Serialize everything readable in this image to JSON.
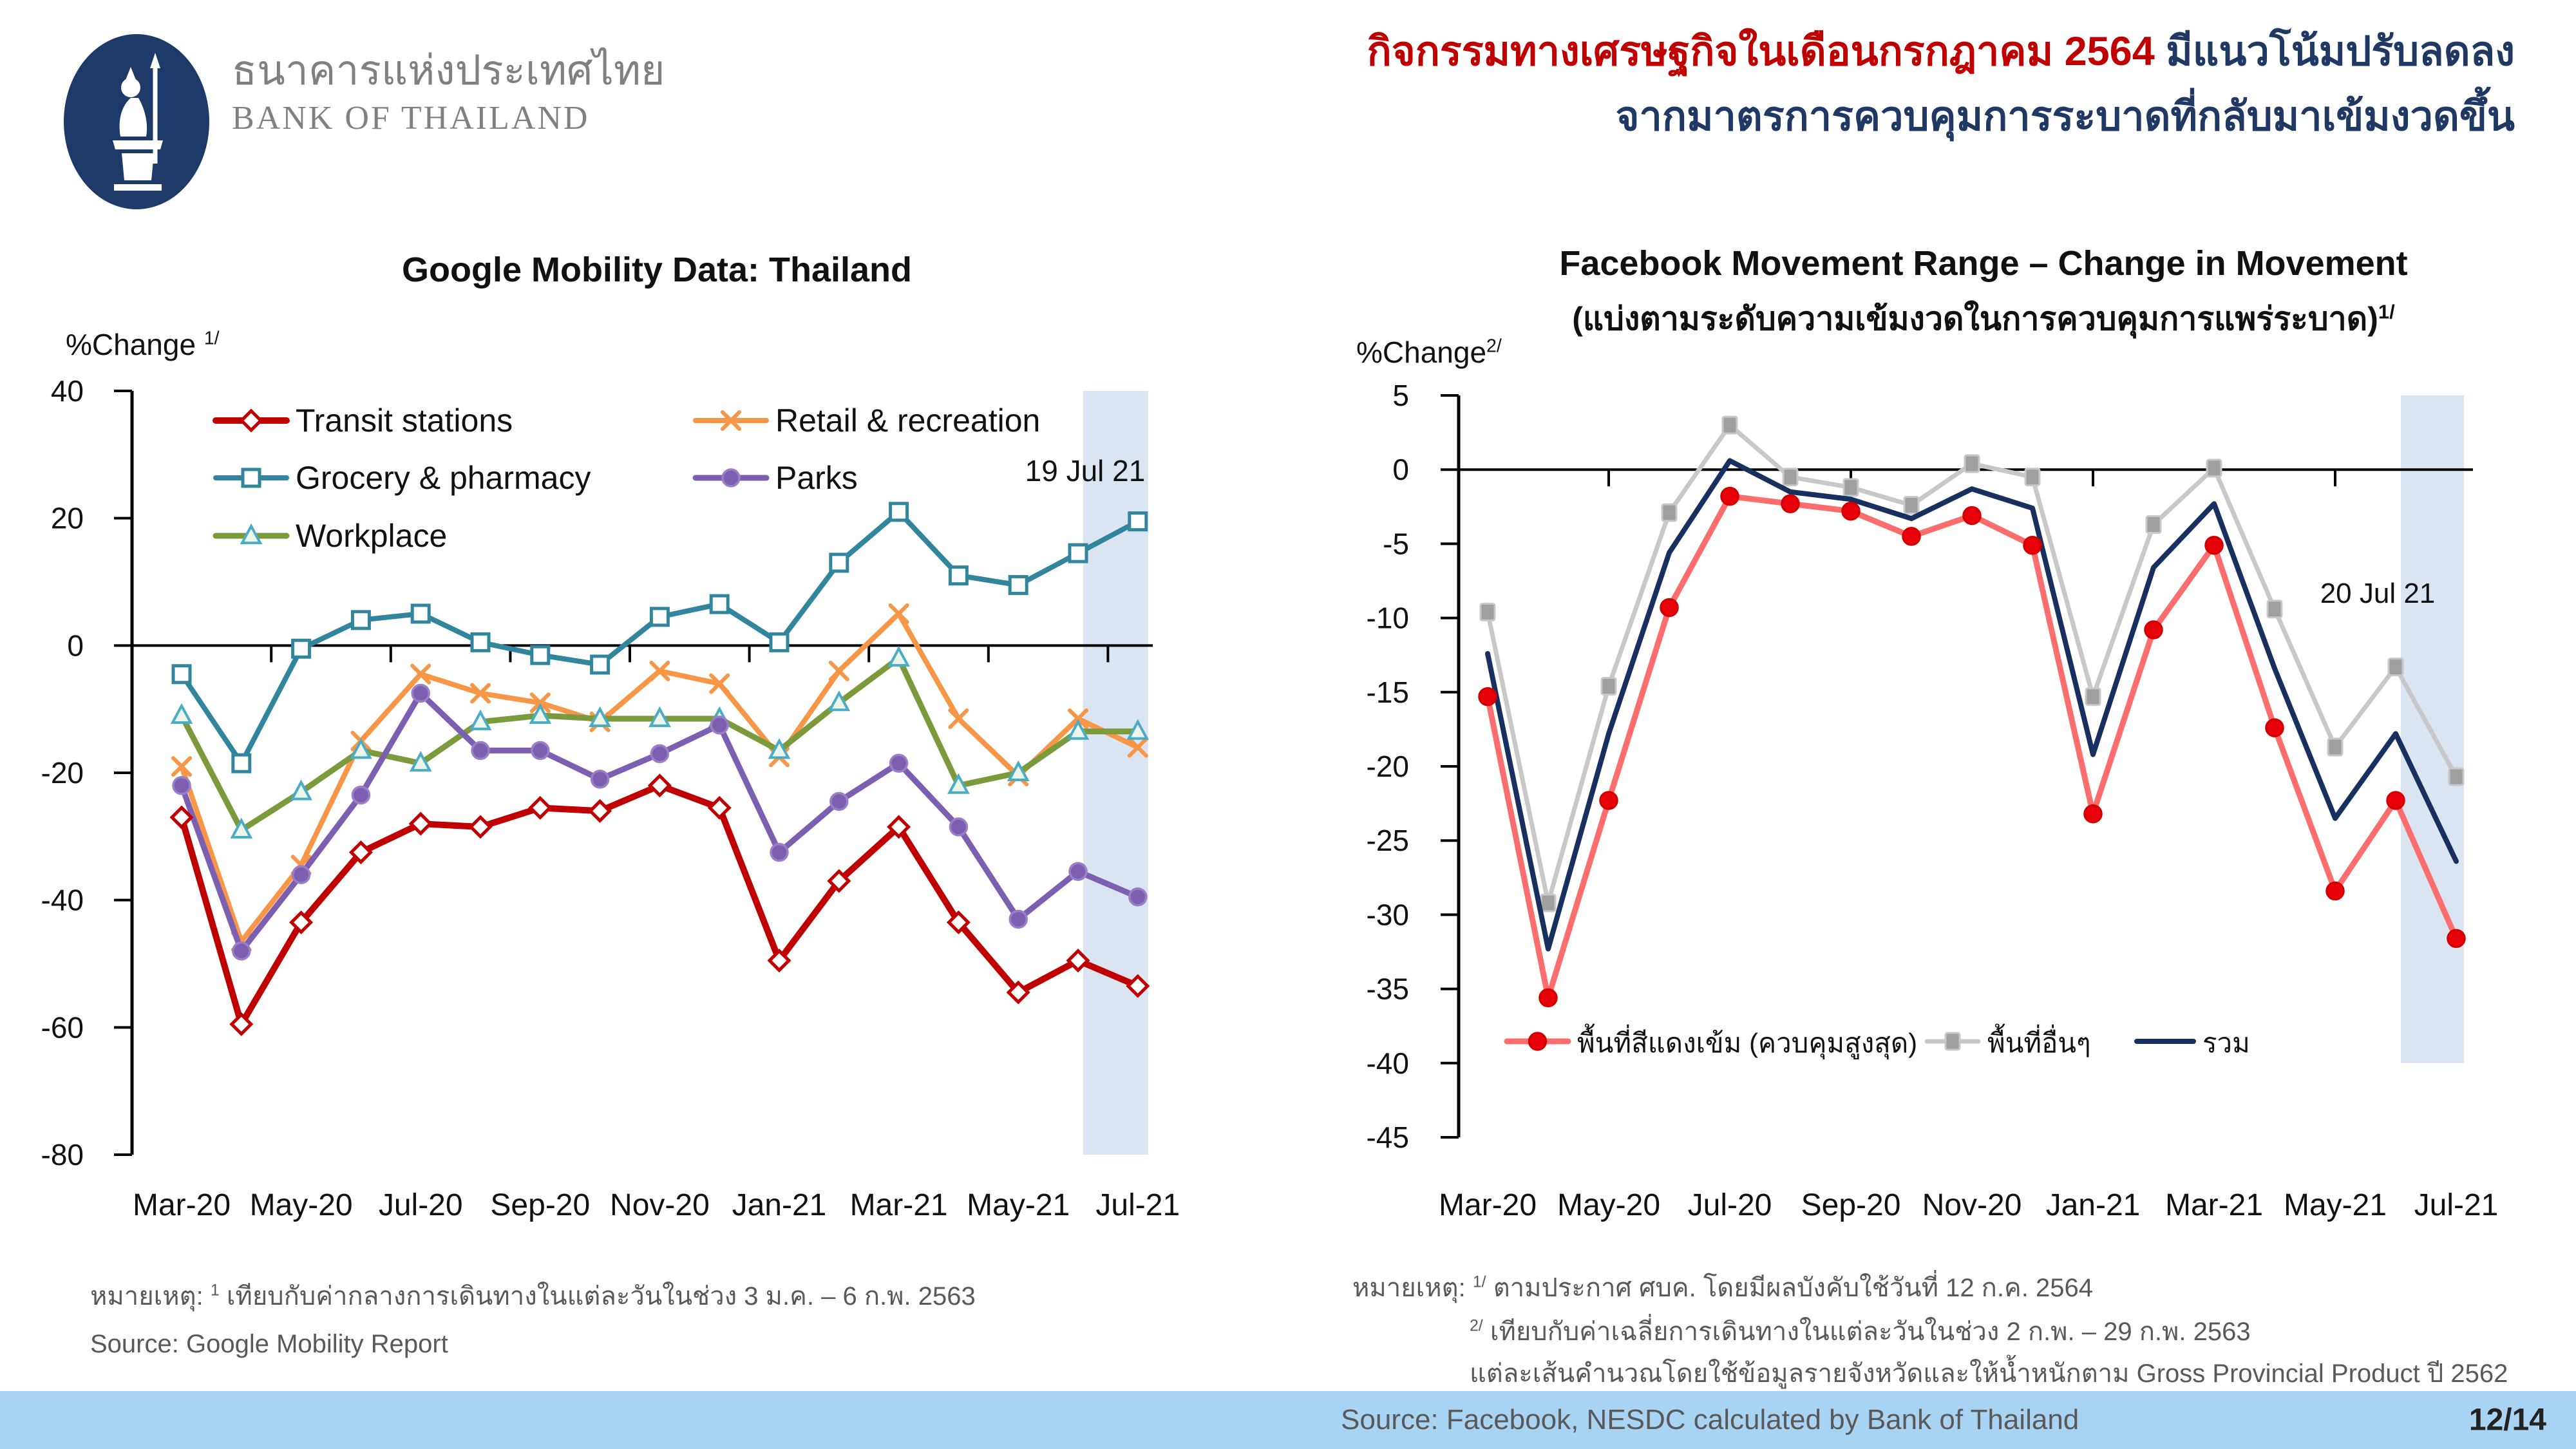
{
  "logo": {
    "org_name_thai": "ธนาคารแห่งประเทศไทย",
    "org_name_en": "BANK OF THAILAND",
    "emblem_color": "#1E3A68"
  },
  "headline": {
    "part1_red": "กิจกรรมทางเศรษฐกิจในเดือนกรกฎาคม 2564",
    "part1_navy": "มีแนวโน้มปรับลดลง",
    "line2": "จากมาตรการควบคุมการระบาดที่กลับมาเข้มงวดขึ้น",
    "red_color": "#C00000",
    "navy_color": "#1F3864"
  },
  "left_panel": {
    "title": "Google Mobility Data: Thailand",
    "y_axis_label": "%Change",
    "y_axis_sup": "1/",
    "annotation": "19 Jul 21",
    "note_prefix": "หมายเหตุ:",
    "note_sup": "1",
    "note_text": "เทียบกับค่ากลางการเดินทางในแต่ละวันในช่วง 3 ม.ค. –  6 ก.พ. 2563",
    "source": "Source: Google Mobility Report"
  },
  "right_panel": {
    "title": "Facebook Movement Range – Change in Movement",
    "subtitle": "(แบ่งตามระดับความเข้มงวดในการควบคุมการแพร่ระบาด)",
    "subtitle_sup": "1/",
    "y_axis_label": "%Change",
    "y_axis_sup": "2/",
    "annotation": "20 Jul 21",
    "note_prefix": "หมายเหตุ:",
    "note1_sup": "1/",
    "note1_text": "ตามประกาศ ศบค. โดยมีผลบังคับใช้วันที่ 12 ก.ค. 2564",
    "note2_sup": "2/",
    "note2_text": "เทียบกับค่าเฉลี่ยการเดินทางในแต่ละวันในช่วง 2 ก.พ. – 29 ก.พ. 2563",
    "note3_text": "แต่ละเส้นคำนวณโดยใช้ข้อมูลรายจังหวัดและให้น้ำหนักตาม Gross Provincial Product ปี 2562"
  },
  "footer": {
    "source": "Source: Facebook, NESDC calculated by Bank of Thailand",
    "page": "12/14",
    "bg_color": "#A9D3F2"
  },
  "chart_data": [
    {
      "type": "line",
      "title": "Google Mobility Data: Thailand",
      "xlabel": "",
      "ylabel": "%Change 1/",
      "ylim": [
        -80,
        40
      ],
      "ytick_step": 20,
      "grid": false,
      "legend_position": "inside top-left, two columns",
      "x": [
        "Mar-20",
        "Apr-20",
        "May-20",
        "Jun-20",
        "Jul-20",
        "Aug-20",
        "Sep-20",
        "Oct-20",
        "Nov-20",
        "Dec-20",
        "Jan-21",
        "Feb-21",
        "Mar-21",
        "Apr-21",
        "May-21",
        "Jun-21",
        "Jul-21"
      ],
      "x_tick_labels": [
        "Mar-20",
        "May-20",
        "Jul-20",
        "Sep-20",
        "Nov-20",
        "Jan-21",
        "Mar-21",
        "May-21",
        "Jul-21"
      ],
      "highlight_band": {
        "from": "Jun-21",
        "to": "Jul-21",
        "from_index": 15,
        "to_index": 16,
        "label": "19 Jul 21",
        "color": "#DBE5F1"
      },
      "series": [
        {
          "name": "Transit stations",
          "color": "#C00000",
          "marker": "diamond-open",
          "marker_fill": "#FFFFFF",
          "marker_stroke": "#C00000",
          "width": 10,
          "values": [
            -27,
            -59.5,
            -43.5,
            -32.5,
            -28,
            -28.5,
            -25.5,
            -26,
            -22,
            -25.5,
            -49.5,
            -37,
            -28.5,
            -43.5,
            -54.5,
            -49.5,
            -53.5
          ]
        },
        {
          "name": "Retail & recreation",
          "color": "#F79646",
          "marker": "x",
          "marker_fill": "none",
          "marker_stroke": "#F79646",
          "width": 8,
          "values": [
            -19,
            -46.5,
            -34.5,
            -15,
            -4.5,
            -7.5,
            -9,
            -12,
            -4,
            -6,
            -17.5,
            -4,
            5,
            -11.5,
            -20.5,
            -11.5,
            -16
          ]
        },
        {
          "name": "Grocery & pharmacy",
          "color": "#31859C",
          "marker": "square-open",
          "marker_fill": "#FFFFFF",
          "marker_stroke": "#31859C",
          "width": 8,
          "values": [
            -4.5,
            -18.5,
            -0.5,
            4,
            5,
            0.5,
            -1.5,
            -3,
            4.5,
            6.5,
            0.5,
            13,
            21,
            11,
            9.5,
            14.5,
            19.5
          ]
        },
        {
          "name": "Parks",
          "color": "#7D5FB2",
          "marker": "circle-fill",
          "marker_fill": "#7D5FB2",
          "marker_stroke": "#987FC8",
          "width": 9,
          "values": [
            -22,
            -48,
            -36,
            -23.5,
            -7.5,
            -16.5,
            -16.5,
            -21,
            -17,
            -12.5,
            -32.5,
            -24.5,
            -18.5,
            -28.5,
            -43,
            -35.5,
            -39.5
          ]
        },
        {
          "name": "Workplace",
          "color": "#7A9A3C",
          "marker": "triangle-open",
          "marker_fill": "#ECF5EA",
          "marker_stroke": "#4BACC6",
          "width": 9,
          "values": [
            -11,
            -29,
            -23,
            -16.5,
            -18.5,
            -12,
            -11,
            -11.5,
            -11.5,
            -11.5,
            -16.5,
            -9,
            -2,
            -22,
            -20,
            -13.5,
            -13.5
          ]
        }
      ]
    },
    {
      "type": "line",
      "title": "Facebook Movement Range – Change in Movement (แบ่งตามระดับความเข้มงวดในการควบคุมการแพร่ระบาด) 1/",
      "xlabel": "",
      "ylabel": "%Change 2/",
      "ylim": [
        -45,
        5
      ],
      "ytick_step": 5,
      "grid": false,
      "legend_position": "inside bottom",
      "x": [
        "Mar-20",
        "Apr-20",
        "May-20",
        "Jun-20",
        "Jul-20",
        "Aug-20",
        "Sep-20",
        "Oct-20",
        "Nov-20",
        "Dec-20",
        "Jan-21",
        "Feb-21",
        "Mar-21",
        "Apr-21",
        "May-21",
        "Jun-21",
        "Jul-21"
      ],
      "x_tick_labels": [
        "Mar-20",
        "May-20",
        "Jul-20",
        "Sep-20",
        "Nov-20",
        "Jan-21",
        "Mar-21",
        "May-21",
        "Jul-21"
      ],
      "highlight_band": {
        "from": "Jun-21",
        "to": "Jul-21",
        "from_index": 15,
        "to_index": 16,
        "label": "20 Jul 21",
        "color": "#DBE5F1",
        "y_bottom": -40
      },
      "series": [
        {
          "name": "พื้นที่สีแดงเข้ม (ควบคุมสูงสุด)",
          "color": "#FC6E6E",
          "marker": "circle-fill",
          "marker_fill": "#E8000B",
          "marker_stroke": "#D40000",
          "width": 9,
          "values": [
            -15.3,
            -35.6,
            -22.3,
            -9.3,
            -1.8,
            -2.3,
            -2.8,
            -4.5,
            -3.1,
            -5.1,
            -23.2,
            -10.8,
            -5.1,
            -17.4,
            -28.4,
            -22.3,
            -31.6
          ]
        },
        {
          "name": "พื้นที่อื่นๆ",
          "color": "#C8C8C8",
          "marker": "square-fill",
          "marker_fill": "#A0A0A0",
          "marker_stroke": "#C8C8C8",
          "width": 7,
          "values": [
            -9.6,
            -29.2,
            -14.6,
            -2.9,
            3.0,
            -0.5,
            -1.2,
            -2.4,
            0.4,
            -0.5,
            -15.3,
            -3.7,
            0.1,
            -9.4,
            -18.7,
            -13.3,
            -20.7
          ]
        },
        {
          "name": "รวม",
          "color": "#17305F",
          "marker": "none",
          "marker_fill": "none",
          "marker_stroke": "none",
          "width": 8,
          "values": [
            -12.4,
            -32.3,
            -17.8,
            -5.6,
            0.6,
            -1.5,
            -2.0,
            -3.3,
            -1.3,
            -2.6,
            -19.2,
            -6.6,
            -2.3,
            -13.4,
            -23.5,
            -17.8,
            -26.4
          ]
        }
      ]
    }
  ]
}
